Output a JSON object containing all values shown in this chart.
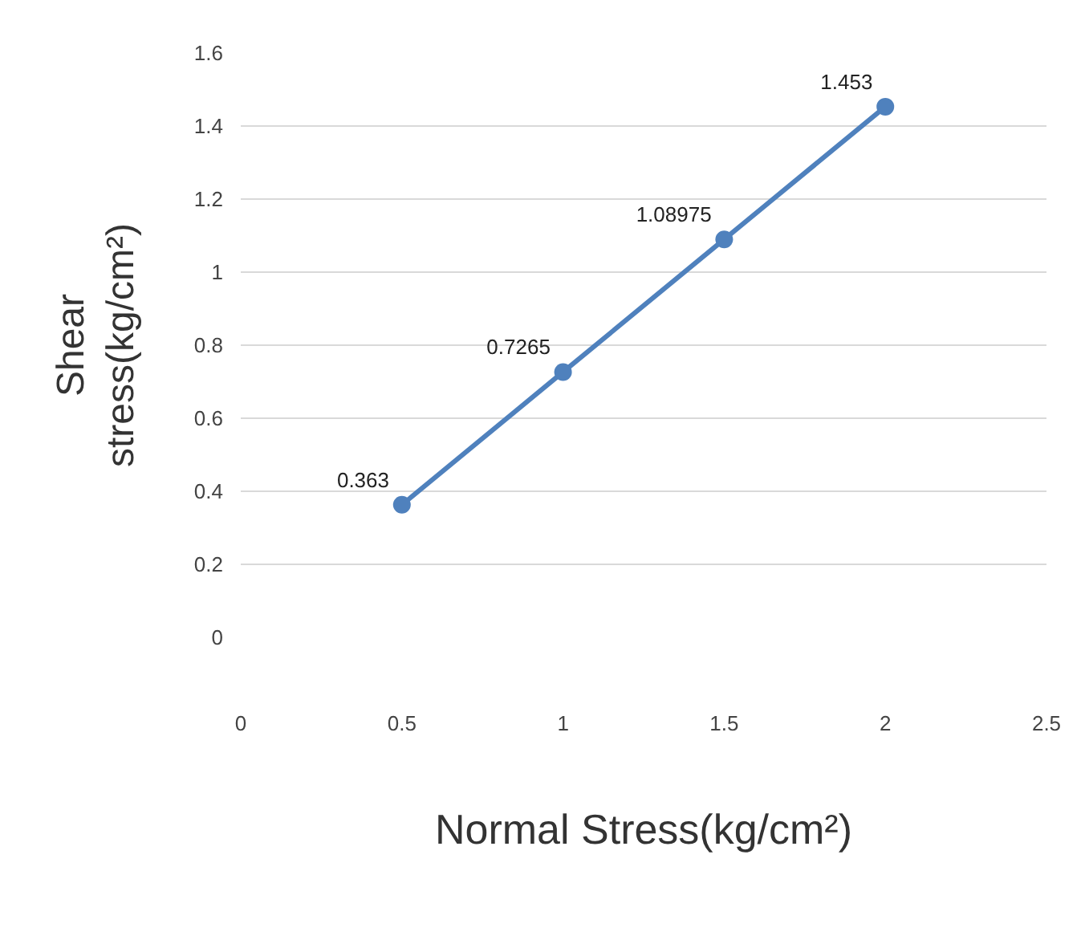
{
  "chart_data": {
    "type": "line",
    "xlabel": "Normal Stress(kg/cm²)",
    "ylabel": "Shear stress(kg/cm²)",
    "x": [
      0.5,
      1,
      1.5,
      2
    ],
    "series": [
      {
        "color": "#4f81bd",
        "values": [
          0.363,
          0.7265,
          1.08975,
          1.453
        ]
      }
    ],
    "data_labels": true,
    "marker": "circle",
    "line_style": "solid",
    "grid": "y",
    "legend": false,
    "xlim": [
      0,
      2.5
    ],
    "xticks": [
      0,
      0.5,
      1,
      1.5,
      2,
      2.5
    ],
    "ylim": [
      0,
      1.6
    ],
    "yticks": [
      0,
      0.2,
      0.4,
      0.6,
      0.8,
      1,
      1.2,
      1.4,
      1.6
    ]
  }
}
